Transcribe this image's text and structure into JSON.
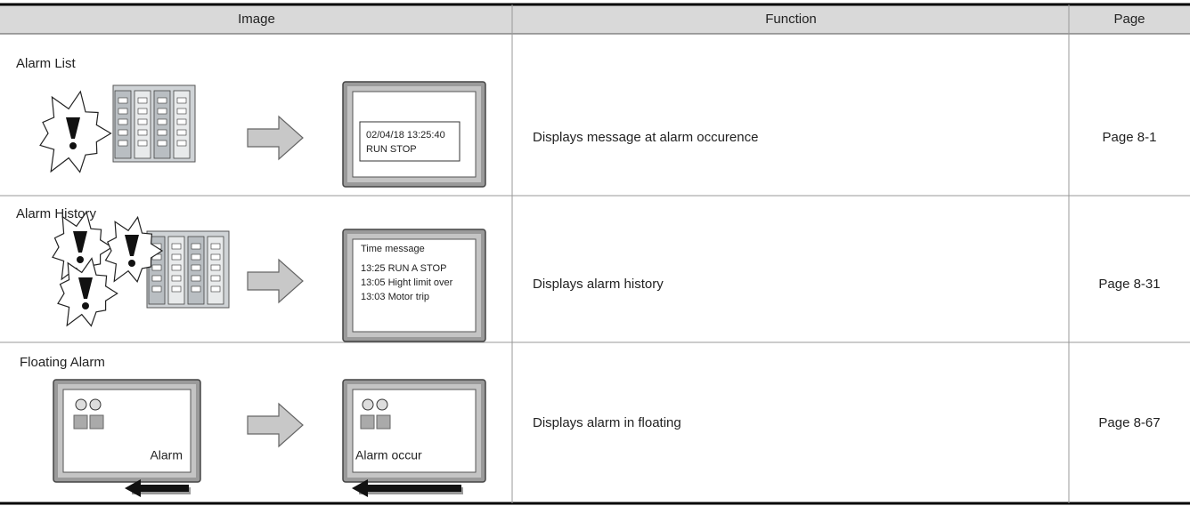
{
  "table": {
    "header": [
      "Image",
      "Function",
      "Page"
    ],
    "rows": [
      {
        "title": "Alarm List",
        "screen": [
          "02/04/18  13:25:40",
          "RUN STOP"
        ],
        "function": "Displays message at alarm occurence",
        "page": "Page 8-1"
      },
      {
        "title": "Alarm History",
        "screen": [
          "Time message",
          "13:25 RUN A STOP",
          "13:05 Hight limit over",
          "13:03 Motor trip"
        ],
        "function": "Displays alarm history",
        "page": "Page 8-31"
      },
      {
        "title": "Floating Alarm",
        "screen": [
          "Alarm",
          "Alarm occur"
        ],
        "function": "Displays alarm in floating",
        "page": "Page 8-67"
      }
    ]
  }
}
